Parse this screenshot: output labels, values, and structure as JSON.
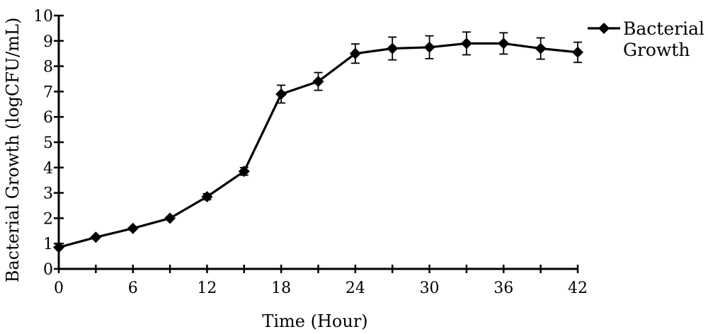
{
  "chart_data": {
    "type": "line",
    "title": "",
    "xlabel": "Time (Hour)",
    "ylabel": "Bacterial Growth (logCFU/mL)",
    "xlim": [
      0,
      42
    ],
    "ylim": [
      0,
      10
    ],
    "xticks": [
      0,
      6,
      12,
      18,
      24,
      30,
      36,
      42
    ],
    "xticks_minor": [
      3,
      9,
      15,
      21,
      27,
      33,
      39
    ],
    "yticks": [
      0,
      1,
      2,
      3,
      4,
      5,
      6,
      7,
      8,
      9,
      10
    ],
    "grid": false,
    "legend": {
      "position": "right",
      "lines": [
        "Bacterial",
        "Growth"
      ]
    },
    "series": [
      {
        "name": "Bacterial Growth",
        "color": "#000000",
        "marker": "diamond",
        "x": [
          0,
          3,
          6,
          9,
          12,
          15,
          18,
          21,
          24,
          27,
          30,
          33,
          36,
          39,
          42
        ],
        "y": [
          0.85,
          1.25,
          1.6,
          2.0,
          2.85,
          3.85,
          6.9,
          7.4,
          8.5,
          8.7,
          8.75,
          8.9,
          8.9,
          8.7,
          8.55
        ],
        "error": [
          0,
          0,
          0,
          0,
          0.12,
          0.15,
          0.35,
          0.35,
          0.38,
          0.45,
          0.45,
          0.45,
          0.42,
          0.42,
          0.4
        ]
      }
    ]
  }
}
